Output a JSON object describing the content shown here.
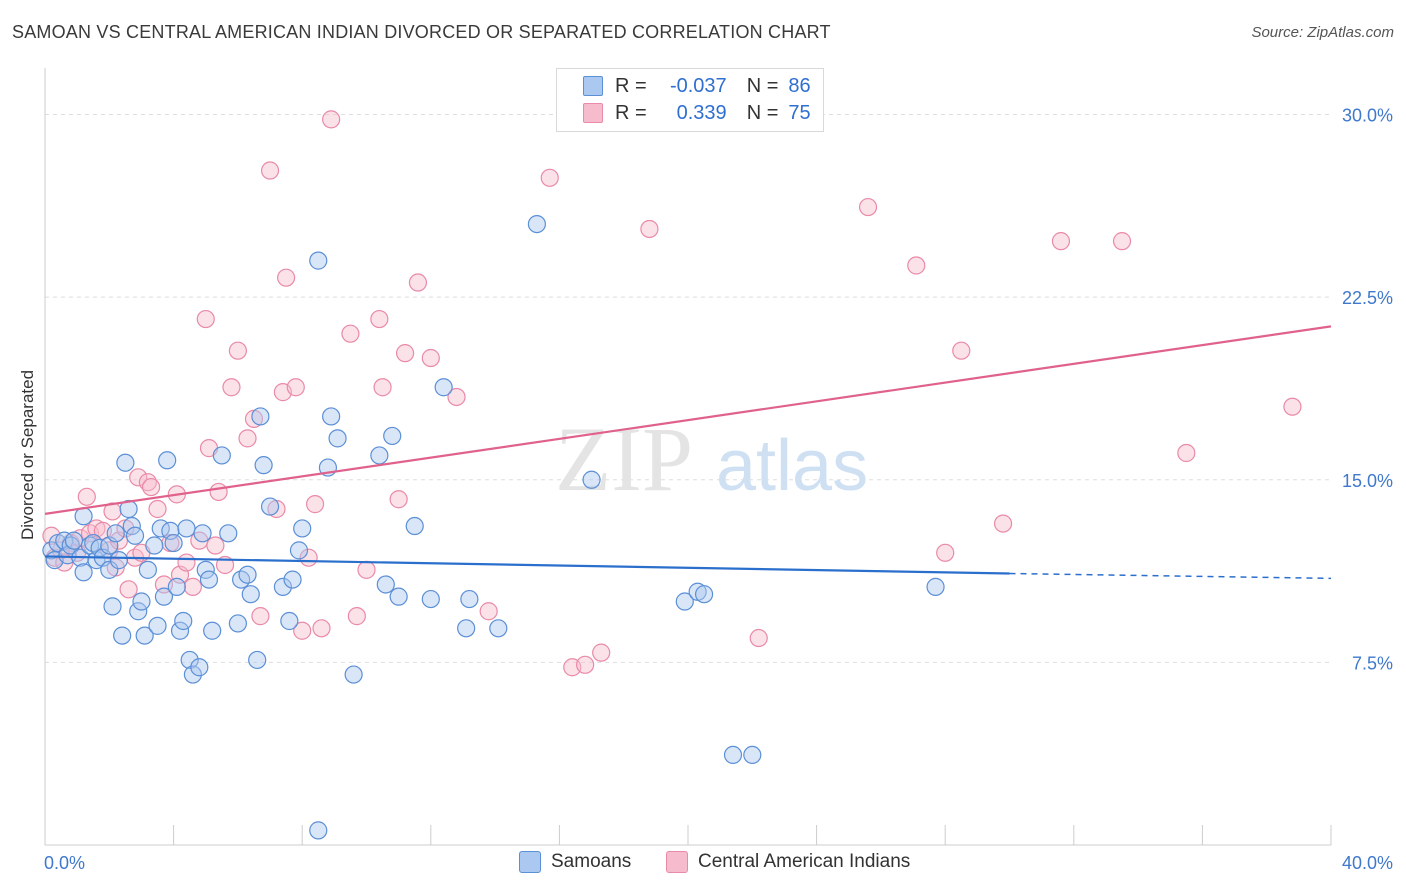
{
  "title": "SAMOAN VS CENTRAL AMERICAN INDIAN DIVORCED OR SEPARATED CORRELATION CHART",
  "source": "Source: ZipAtlas.com",
  "watermark": {
    "zip": "ZIP",
    "atlas": "atlas"
  },
  "colors": {
    "blue_fill": "#aac8f0",
    "blue_stroke": "#5b8fd6",
    "blue_line": "#2b6fcc",
    "pink_fill": "#f6bccd",
    "pink_stroke": "#e98aa8",
    "pink_line": "#e0628c",
    "axis_label": "#3f78cc",
    "grid": "#dddddd"
  },
  "legend": {
    "rows": [
      {
        "r_label": "R =",
        "r_value": "-0.037",
        "n_label": "N =",
        "n_value": "86"
      },
      {
        "r_label": "R =",
        "r_value": "0.339",
        "n_label": "N =",
        "n_value": "75"
      }
    ],
    "bottom": [
      "Samoans",
      "Central American Indians"
    ]
  },
  "chart_data": {
    "type": "scatter",
    "title": "SAMOAN VS CENTRAL AMERICAN INDIAN DIVORCED OR SEPARATED CORRELATION CHART",
    "xlabel": "",
    "ylabel": "Divorced or Separated",
    "xlim": [
      0,
      40
    ],
    "ylim": [
      0,
      31.5
    ],
    "x_tick_labels": [
      "0.0%",
      "40.0%"
    ],
    "y_ticks": [
      7.5,
      15.0,
      22.5,
      30.0
    ],
    "y_tick_labels": [
      "7.5%",
      "15.0%",
      "22.5%",
      "30.0%"
    ],
    "grid": true,
    "legend_position": "top-center",
    "series": [
      {
        "name": "Samoans",
        "color": "blue",
        "r": -0.037,
        "n": 86,
        "trend": {
          "x0": 0,
          "y0": 11.85,
          "x1": 30,
          "y1": 11.15,
          "dashed_to_x": 40,
          "dashed_to_y": 10.95
        },
        "points": [
          [
            0.2,
            12.1
          ],
          [
            0.3,
            11.7
          ],
          [
            0.4,
            12.4
          ],
          [
            0.6,
            12.5
          ],
          [
            0.7,
            11.9
          ],
          [
            0.8,
            12.3
          ],
          [
            0.9,
            12.5
          ],
          [
            1.1,
            11.8
          ],
          [
            1.2,
            11.2
          ],
          [
            1.2,
            13.5
          ],
          [
            1.4,
            12.3
          ],
          [
            1.5,
            12.4
          ],
          [
            1.6,
            11.7
          ],
          [
            1.7,
            12.2
          ],
          [
            1.8,
            11.8
          ],
          [
            2.0,
            12.3
          ],
          [
            2.0,
            11.3
          ],
          [
            2.1,
            9.8
          ],
          [
            2.2,
            12.8
          ],
          [
            2.3,
            11.7
          ],
          [
            2.4,
            8.6
          ],
          [
            2.5,
            15.7
          ],
          [
            2.6,
            13.8
          ],
          [
            2.7,
            13.1
          ],
          [
            2.8,
            12.7
          ],
          [
            2.9,
            9.6
          ],
          [
            3.0,
            10.0
          ],
          [
            3.1,
            8.6
          ],
          [
            3.2,
            11.3
          ],
          [
            3.4,
            12.3
          ],
          [
            3.5,
            9.0
          ],
          [
            3.6,
            13.0
          ],
          [
            3.7,
            10.2
          ],
          [
            3.8,
            15.8
          ],
          [
            3.9,
            12.9
          ],
          [
            4.0,
            12.4
          ],
          [
            4.1,
            10.6
          ],
          [
            4.2,
            8.8
          ],
          [
            4.3,
            9.2
          ],
          [
            4.4,
            13.0
          ],
          [
            4.5,
            7.6
          ],
          [
            4.6,
            7.0
          ],
          [
            4.8,
            7.3
          ],
          [
            4.9,
            12.8
          ],
          [
            5.0,
            11.3
          ],
          [
            5.1,
            10.9
          ],
          [
            5.2,
            8.8
          ],
          [
            5.5,
            16.0
          ],
          [
            5.7,
            12.8
          ],
          [
            6.0,
            9.1
          ],
          [
            6.1,
            10.9
          ],
          [
            6.3,
            11.1
          ],
          [
            6.4,
            10.3
          ],
          [
            6.6,
            7.6
          ],
          [
            6.7,
            17.6
          ],
          [
            6.8,
            15.6
          ],
          [
            7.0,
            13.9
          ],
          [
            7.4,
            10.6
          ],
          [
            7.6,
            9.2
          ],
          [
            7.7,
            10.9
          ],
          [
            7.9,
            12.1
          ],
          [
            8.0,
            13.0
          ],
          [
            8.5,
            24.0
          ],
          [
            8.5,
            0.6
          ],
          [
            8.8,
            15.5
          ],
          [
            8.9,
            17.6
          ],
          [
            9.1,
            16.7
          ],
          [
            9.6,
            7.0
          ],
          [
            10.4,
            16.0
          ],
          [
            10.6,
            10.7
          ],
          [
            10.8,
            16.8
          ],
          [
            11.0,
            10.2
          ],
          [
            11.5,
            13.1
          ],
          [
            12.0,
            10.1
          ],
          [
            12.4,
            18.8
          ],
          [
            13.1,
            8.9
          ],
          [
            13.2,
            10.1
          ],
          [
            14.1,
            8.9
          ],
          [
            15.3,
            25.5
          ],
          [
            17.0,
            15.0
          ],
          [
            19.9,
            10.0
          ],
          [
            20.3,
            10.4
          ],
          [
            20.5,
            10.3
          ],
          [
            21.4,
            3.7
          ],
          [
            22.0,
            3.7
          ],
          [
            27.7,
            10.6
          ]
        ]
      },
      {
        "name": "Central American Indians",
        "color": "pink",
        "r": 0.339,
        "n": 75,
        "trend": {
          "x0": 0,
          "y0": 13.6,
          "x1": 40,
          "y1": 21.3
        },
        "points": [
          [
            0.2,
            12.7
          ],
          [
            0.3,
            11.8
          ],
          [
            0.5,
            12.1
          ],
          [
            0.6,
            11.6
          ],
          [
            0.8,
            12.4
          ],
          [
            1.0,
            12.0
          ],
          [
            1.1,
            12.6
          ],
          [
            1.3,
            14.3
          ],
          [
            1.4,
            12.8
          ],
          [
            1.6,
            13.0
          ],
          [
            1.8,
            12.9
          ],
          [
            2.0,
            12.1
          ],
          [
            2.1,
            13.7
          ],
          [
            2.2,
            11.4
          ],
          [
            2.3,
            12.5
          ],
          [
            2.5,
            13.0
          ],
          [
            2.6,
            10.5
          ],
          [
            2.8,
            11.8
          ],
          [
            2.9,
            15.1
          ],
          [
            3.0,
            12.0
          ],
          [
            3.2,
            14.9
          ],
          [
            3.3,
            14.7
          ],
          [
            3.5,
            13.8
          ],
          [
            3.7,
            10.7
          ],
          [
            3.9,
            12.4
          ],
          [
            4.1,
            14.4
          ],
          [
            4.2,
            11.1
          ],
          [
            4.4,
            11.6
          ],
          [
            4.6,
            10.6
          ],
          [
            4.8,
            12.5
          ],
          [
            5.0,
            21.6
          ],
          [
            5.1,
            16.3
          ],
          [
            5.3,
            12.3
          ],
          [
            5.4,
            14.5
          ],
          [
            5.6,
            11.5
          ],
          [
            5.8,
            18.8
          ],
          [
            6.0,
            20.3
          ],
          [
            6.3,
            16.7
          ],
          [
            6.5,
            17.5
          ],
          [
            6.7,
            9.4
          ],
          [
            7.0,
            27.7
          ],
          [
            7.2,
            13.8
          ],
          [
            7.4,
            18.6
          ],
          [
            7.5,
            23.3
          ],
          [
            7.8,
            18.8
          ],
          [
            8.0,
            8.8
          ],
          [
            8.2,
            11.8
          ],
          [
            8.4,
            14.0
          ],
          [
            8.6,
            8.9
          ],
          [
            8.9,
            29.8
          ],
          [
            9.5,
            21.0
          ],
          [
            9.7,
            9.4
          ],
          [
            10.0,
            11.3
          ],
          [
            10.4,
            21.6
          ],
          [
            10.5,
            18.8
          ],
          [
            11.0,
            14.2
          ],
          [
            11.2,
            20.2
          ],
          [
            11.6,
            23.1
          ],
          [
            12.0,
            20.0
          ],
          [
            12.8,
            18.4
          ],
          [
            13.8,
            9.6
          ],
          [
            15.7,
            27.4
          ],
          [
            16.4,
            7.3
          ],
          [
            16.8,
            7.4
          ],
          [
            17.3,
            7.9
          ],
          [
            18.8,
            25.3
          ],
          [
            22.2,
            8.5
          ],
          [
            25.6,
            26.2
          ],
          [
            27.1,
            23.8
          ],
          [
            28.0,
            12.0
          ],
          [
            28.5,
            20.3
          ],
          [
            29.8,
            13.2
          ],
          [
            31.6,
            24.8
          ],
          [
            33.5,
            24.8
          ],
          [
            35.5,
            16.1
          ],
          [
            38.8,
            18.0
          ]
        ]
      }
    ]
  }
}
